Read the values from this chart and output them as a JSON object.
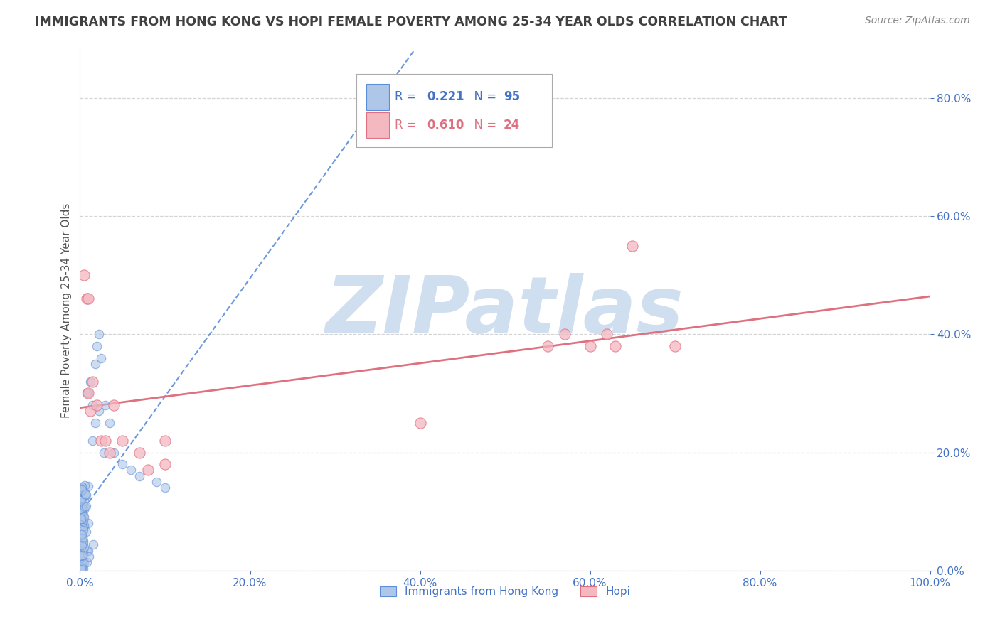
{
  "title": "IMMIGRANTS FROM HONG KONG VS HOPI FEMALE POVERTY AMONG 25-34 YEAR OLDS CORRELATION CHART",
  "source": "Source: ZipAtlas.com",
  "ylabel": "Female Poverty Among 25-34 Year Olds",
  "xlim": [
    0.0,
    1.0
  ],
  "ylim": [
    0.0,
    0.88
  ],
  "x_ticks": [
    0.0,
    0.2,
    0.4,
    0.6,
    0.8,
    1.0
  ],
  "x_tick_labels": [
    "0.0%",
    "",
    "",
    "",
    "",
    "100.0%"
  ],
  "y_ticks": [
    0.0,
    0.2,
    0.4,
    0.6,
    0.8
  ],
  "y_tick_labels": [
    "0.0%",
    "20.0%",
    "40.0%",
    "60.0%",
    "80.0%"
  ],
  "blue_line_color": "#5b8dd9",
  "pink_line_color": "#e07080",
  "blue_scatter_color": "#aec6e8",
  "pink_scatter_color": "#f4b8c1",
  "scatter_alpha": 0.6,
  "scatter_size": 80,
  "background_color": "#ffffff",
  "grid_color": "#d0d0d0",
  "title_color": "#404040",
  "axis_label_color": "#555555",
  "tick_label_color": "#4472c4",
  "watermark_color": "#d0dff0",
  "watermark_fontsize": 80,
  "R_blue": "0.221",
  "N_blue": "95",
  "R_pink": "0.610",
  "N_pink": "24",
  "blue_line_slope": 1.0,
  "blue_line_intercept": 0.0,
  "pink_line_slope": 0.22,
  "pink_line_intercept": 0.3
}
